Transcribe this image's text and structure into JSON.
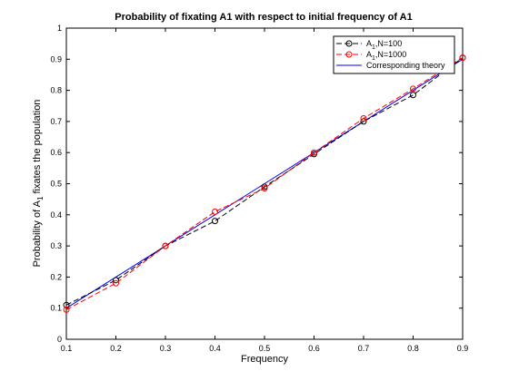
{
  "chart_data": {
    "type": "line",
    "title": "Probability of fixating A1 with respect to initial frequency of A1",
    "xlabel": "Frequency",
    "ylabel": {
      "prefix": "Probability of A",
      "subscript": "1",
      "suffix": " fixates the population"
    },
    "xlim": [
      0.1,
      0.9
    ],
    "ylim": [
      0,
      1
    ],
    "xticks": [
      "0.1",
      "0.2",
      "0.3",
      "0.4",
      "0.5",
      "0.6",
      "0.7",
      "0.8",
      "0.9"
    ],
    "yticks": [
      "0",
      "0.1",
      "0.2",
      "0.3",
      "0.4",
      "0.5",
      "0.6",
      "0.7",
      "0.8",
      "0.9",
      "1"
    ],
    "grid": false,
    "legend_position": "top-right",
    "x": [
      0.1,
      0.2,
      0.3,
      0.4,
      0.5,
      0.6,
      0.7,
      0.8,
      0.9
    ],
    "series": [
      {
        "name": "A1,N=100",
        "legend_prefix": "A",
        "legend_sub": "1",
        "legend_suffix": ",N=100",
        "color": "#000000",
        "style": "dashed",
        "marker": "circle",
        "values": [
          0.11,
          0.19,
          0.3,
          0.38,
          0.49,
          0.595,
          0.7,
          0.785,
          0.905
        ]
      },
      {
        "name": "A1,N=1000",
        "legend_prefix": "A",
        "legend_sub": "1",
        "legend_suffix": ",N=1000",
        "color": "#ff0000",
        "style": "dashed",
        "marker": "circle",
        "values": [
          0.095,
          0.18,
          0.3,
          0.41,
          0.485,
          0.6,
          0.71,
          0.805,
          0.905
        ]
      },
      {
        "name": "Corresponding theory",
        "legend_prefix": "Corresponding theory",
        "legend_sub": "",
        "legend_suffix": "",
        "color": "#0000ff",
        "style": "solid",
        "marker": "none",
        "values": [
          0.1,
          0.2,
          0.3,
          0.4,
          0.5,
          0.6,
          0.7,
          0.8,
          0.9
        ]
      }
    ]
  }
}
